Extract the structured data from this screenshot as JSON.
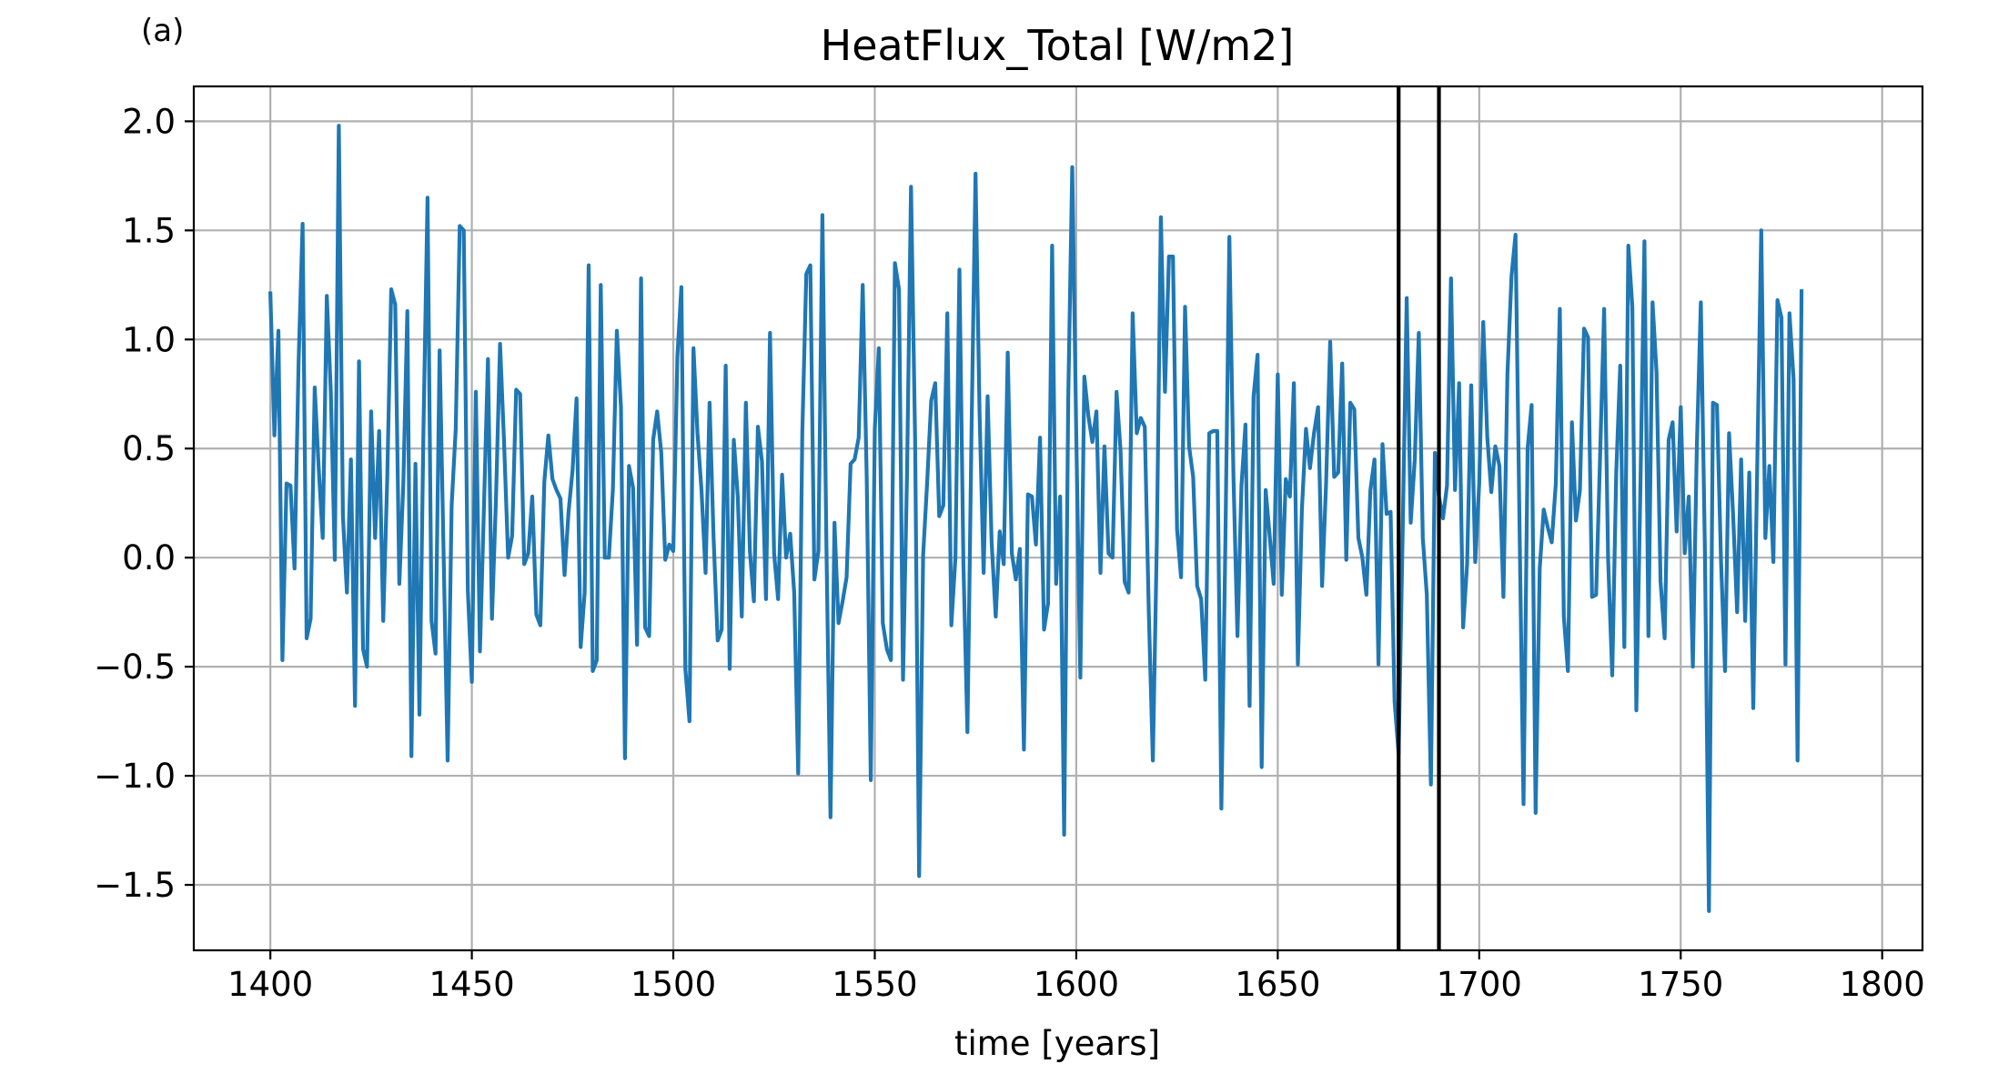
{
  "panel_label": "(a)",
  "chart_data": {
    "type": "line",
    "title": "HeatFlux_Total [W/m2]",
    "xlabel": "time [years]",
    "ylabel": "",
    "xlim": [
      1381,
      1810
    ],
    "ylim": [
      -1.8,
      2.16
    ],
    "xticks": [
      1400,
      1450,
      1500,
      1550,
      1600,
      1650,
      1700,
      1750,
      1800
    ],
    "xtick_labels": [
      "1400",
      "1450",
      "1500",
      "1550",
      "1600",
      "1650",
      "1700",
      "1750",
      "1800"
    ],
    "yticks": [
      2.0,
      1.5,
      1.0,
      0.5,
      0.0,
      -0.5,
      -1.0,
      -1.5
    ],
    "ytick_labels": [
      "2.0",
      "1.5",
      "1.0",
      "0.5",
      "0.0",
      "−0.5",
      "−1.0",
      "−1.5"
    ],
    "grid": true,
    "line_color": "#1f77b4",
    "vlines": [
      1680,
      1690
    ],
    "vline_color": "#000000",
    "x_start": 1400,
    "x_step": 1,
    "series": [
      {
        "values": [
          1.22,
          0.56,
          1.04,
          -0.47,
          0.34,
          0.33,
          -0.05,
          0.9,
          1.53,
          -0.37,
          -0.28,
          0.78,
          0.41,
          0.09,
          1.2,
          0.76,
          -0.01,
          1.98,
          0.19,
          -0.16,
          0.45,
          -0.68,
          0.9,
          -0.42,
          -0.5,
          0.67,
          0.09,
          0.58,
          -0.29,
          0.36,
          1.23,
          1.16,
          -0.12,
          0.34,
          1.13,
          -0.91,
          0.43,
          -0.72,
          0.58,
          1.65,
          -0.29,
          -0.44,
          0.95,
          0.01,
          -0.93,
          0.24,
          0.59,
          1.52,
          1.5,
          -0.15,
          -0.57,
          0.76,
          -0.43,
          0.23,
          0.91,
          -0.28,
          0.28,
          0.98,
          0.53,
          0.0,
          0.1,
          0.77,
          0.75,
          -0.03,
          0.02,
          0.28,
          -0.26,
          -0.31,
          0.35,
          0.56,
          0.36,
          0.31,
          0.27,
          -0.08,
          0.21,
          0.4,
          0.73,
          -0.41,
          -0.16,
          1.34,
          -0.52,
          -0.47,
          1.25,
          0.0,
          0.0,
          0.31,
          1.04,
          0.69,
          -0.92,
          0.42,
          0.32,
          -0.4,
          1.28,
          -0.32,
          -0.36,
          0.54,
          0.67,
          0.48,
          -0.01,
          0.06,
          0.03,
          0.92,
          1.24,
          -0.51,
          -0.75,
          0.96,
          0.57,
          0.31,
          -0.07,
          0.71,
          0.09,
          -0.38,
          -0.33,
          0.88,
          -0.51,
          0.54,
          0.28,
          -0.27,
          0.71,
          0.03,
          -0.2,
          0.6,
          0.44,
          -0.19,
          1.03,
          0.02,
          -0.19,
          0.38,
          0.0,
          0.11,
          -0.16,
          -0.99,
          0.57,
          1.3,
          1.34,
          -0.1,
          0.03,
          1.57,
          0.06,
          -1.19,
          0.16,
          -0.3,
          -0.2,
          -0.09,
          0.43,
          0.45,
          0.55,
          1.25,
          0.37,
          -1.02,
          0.59,
          0.96,
          -0.3,
          -0.42,
          -0.47,
          1.35,
          1.23,
          -0.56,
          0.38,
          1.7,
          0.54,
          -1.46,
          0.01,
          0.35,
          0.72,
          0.8,
          0.19,
          0.24,
          1.12,
          -0.31,
          0.0,
          1.32,
          -0.03,
          -0.8,
          0.58,
          1.76,
          0.67,
          -0.07,
          0.74,
          0.07,
          -0.27,
          0.12,
          -0.03,
          0.94,
          0.02,
          -0.1,
          0.04,
          -0.88,
          0.29,
          0.28,
          0.06,
          0.55,
          -0.33,
          -0.21,
          1.43,
          -0.12,
          0.28,
          -1.27,
          0.73,
          1.79,
          0.57,
          -0.55,
          0.83,
          0.65,
          0.53,
          0.67,
          -0.07,
          0.51,
          0.02,
          0.0,
          0.76,
          0.49,
          -0.11,
          -0.16,
          1.12,
          0.57,
          0.64,
          0.6,
          -0.26,
          -0.93,
          0.08,
          1.56,
          0.76,
          1.38,
          1.38,
          0.13,
          -0.09,
          1.15,
          0.51,
          0.37,
          -0.13,
          -0.19,
          -0.56,
          0.57,
          0.58,
          0.58,
          -1.15,
          0.07,
          1.47,
          0.37,
          -0.36,
          0.33,
          0.61,
          -0.68,
          0.74,
          0.93,
          -0.96,
          0.31,
          0.1,
          -0.12,
          0.84,
          -0.17,
          0.36,
          0.28,
          0.8,
          -0.49,
          0.22,
          0.59,
          0.41,
          0.57,
          0.69,
          -0.13,
          0.34,
          0.99,
          0.37,
          0.39,
          0.89,
          -0.01,
          0.71,
          0.68,
          0.09,
          0.0,
          -0.17,
          0.31,
          0.45,
          -0.49,
          0.52,
          0.2,
          0.21,
          -0.66,
          -0.9,
          0.12,
          1.19,
          0.16,
          0.45,
          1.03,
          0.09,
          -0.17,
          -1.04,
          0.48,
          0.28,
          0.18,
          0.33,
          1.28,
          0.31,
          0.8,
          -0.32,
          -0.03,
          0.79,
          -0.02,
          0.34,
          1.08,
          0.55,
          0.3,
          0.51,
          0.42,
          -0.18,
          0.84,
          1.29,
          1.48,
          0.15,
          -1.13,
          0.5,
          0.7,
          -1.17,
          -0.05,
          0.22,
          0.14,
          0.07,
          0.34,
          1.14,
          -0.27,
          -0.52,
          0.62,
          0.17,
          0.31,
          1.05,
          1.01,
          -0.18,
          -0.17,
          0.47,
          1.14,
          -0.01,
          -0.54,
          0.39,
          0.88,
          -0.41,
          1.43,
          1.15,
          -0.7,
          0.33,
          1.45,
          -0.36,
          1.17,
          0.85,
          -0.11,
          -0.37,
          0.54,
          0.62,
          0.12,
          0.69,
          0.02,
          0.28,
          -0.5,
          0.51,
          1.17,
          0.05,
          -1.62,
          0.71,
          0.7,
          -0.02,
          -0.52,
          0.57,
          0.2,
          -0.25,
          0.45,
          -0.29,
          0.39,
          -0.69,
          0.43,
          1.5,
          0.09,
          0.42,
          -0.02,
          1.18,
          1.1,
          -0.49,
          1.12,
          0.82,
          -0.93,
          1.23
        ]
      }
    ]
  }
}
